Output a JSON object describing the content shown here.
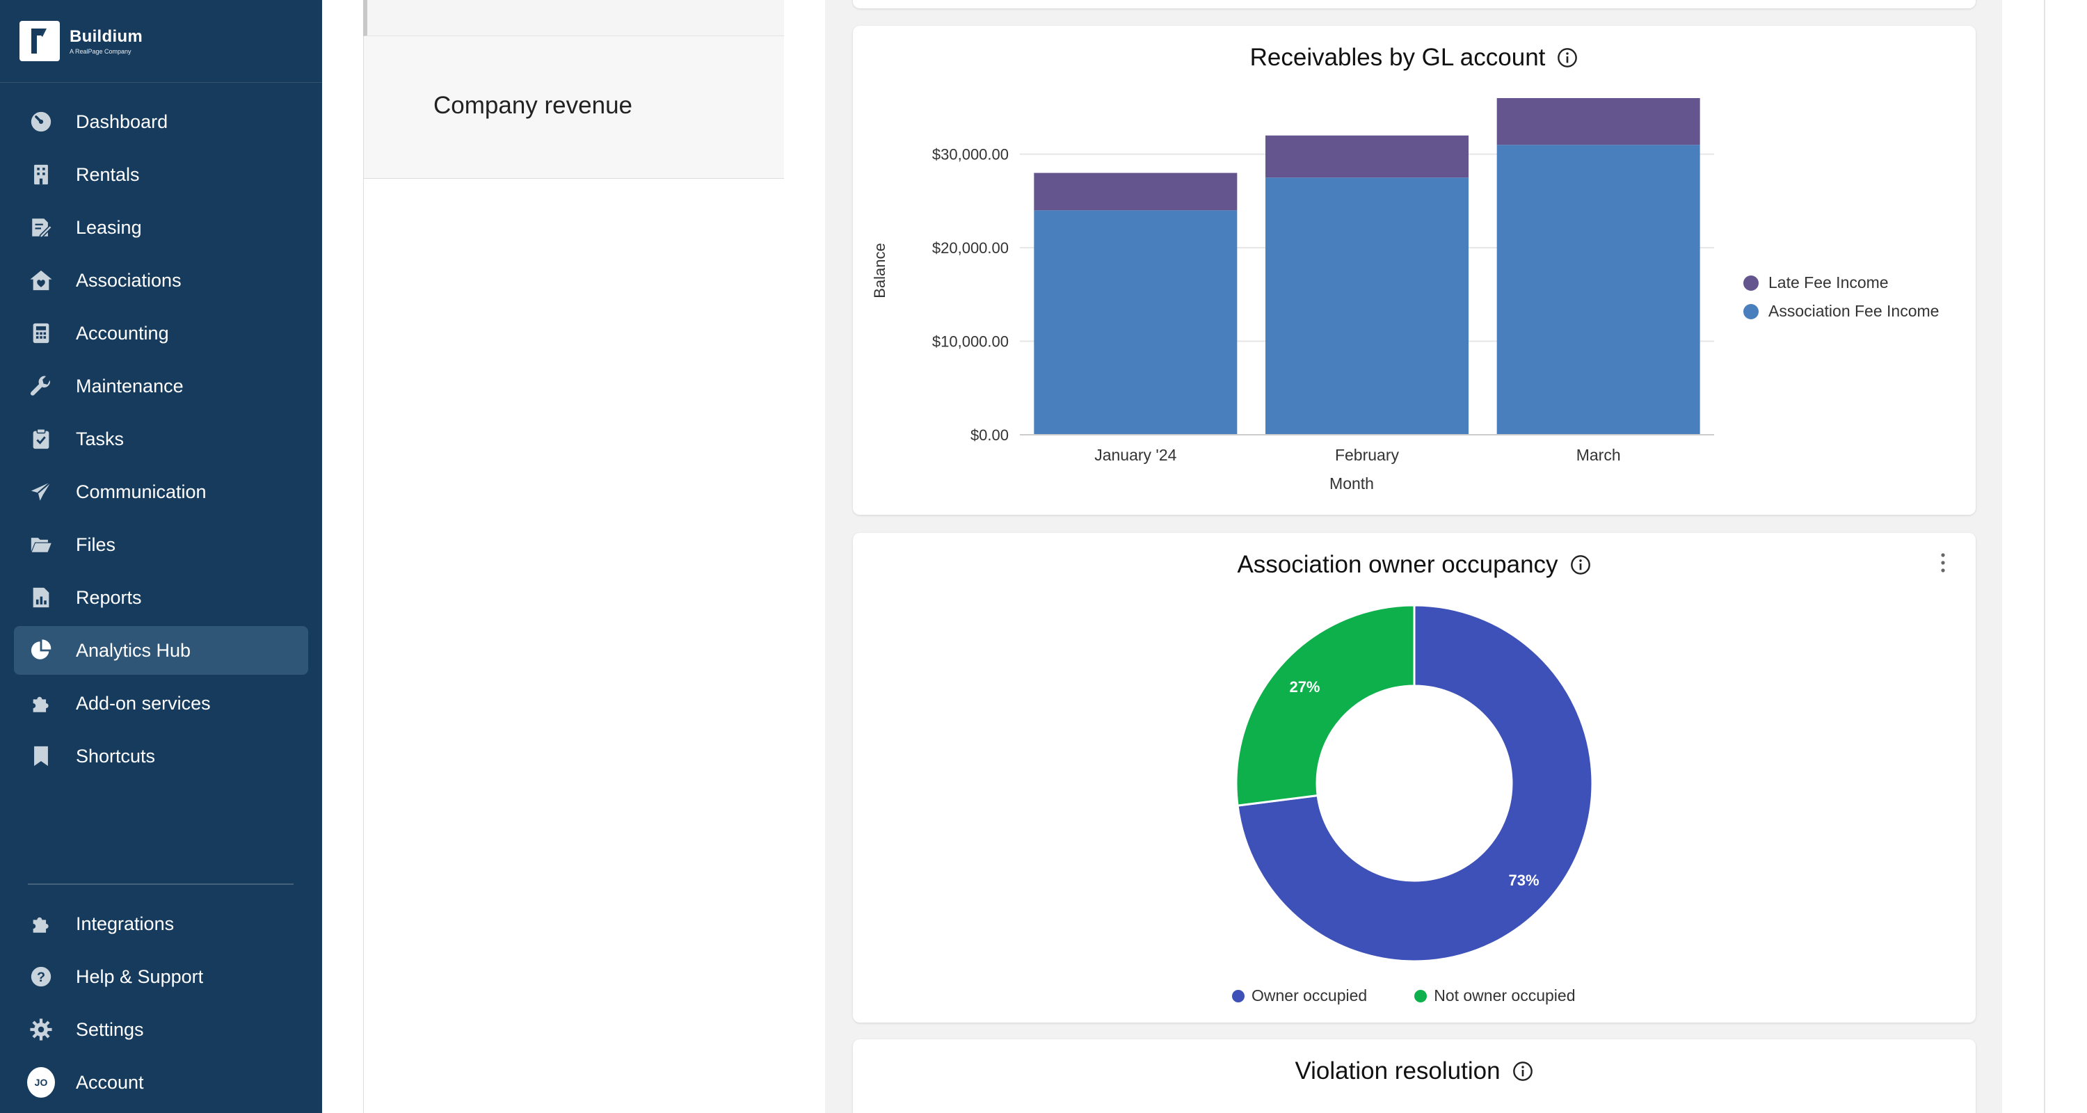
{
  "brand": {
    "name": "Buildium",
    "tagline": "A RealPage Company"
  },
  "nav": {
    "items": [
      {
        "label": "Dashboard",
        "icon": "dashboard-icon",
        "active": false
      },
      {
        "label": "Rentals",
        "icon": "building-icon",
        "active": false
      },
      {
        "label": "Leasing",
        "icon": "lease-document-icon",
        "active": false
      },
      {
        "label": "Associations",
        "icon": "association-house-icon",
        "active": false
      },
      {
        "label": "Accounting",
        "icon": "calculator-icon",
        "active": false
      },
      {
        "label": "Maintenance",
        "icon": "wrench-icon",
        "active": false
      },
      {
        "label": "Tasks",
        "icon": "clipboard-check-icon",
        "active": false
      },
      {
        "label": "Communication",
        "icon": "paper-plane-icon",
        "active": false
      },
      {
        "label": "Files",
        "icon": "folder-open-icon",
        "active": false
      },
      {
        "label": "Reports",
        "icon": "report-document-icon",
        "active": false
      },
      {
        "label": "Analytics Hub",
        "icon": "pie-chart-icon",
        "active": true
      },
      {
        "label": "Add-on services",
        "icon": "puzzle-icon",
        "active": false
      },
      {
        "label": "Shortcuts",
        "icon": "bookmark-icon",
        "active": false
      }
    ],
    "bottom_items": [
      {
        "label": "Integrations",
        "icon": "puzzle-icon"
      },
      {
        "label": "Help & Support",
        "icon": "help-circle-icon"
      },
      {
        "label": "Settings",
        "icon": "gear-icon"
      },
      {
        "label": "Account",
        "icon": "avatar",
        "initials": "JO"
      }
    ]
  },
  "middle_panel": {
    "selected_item": "Company revenue"
  },
  "cards": {
    "receivables": {
      "title": "Receivables by GL account"
    },
    "occupancy": {
      "title": "Association owner occupancy"
    },
    "violation": {
      "title": "Violation resolution"
    }
  },
  "chart_data": [
    {
      "type": "bar",
      "stacked": true,
      "title": "Receivables by GL account",
      "xlabel": "Month",
      "ylabel": "Balance",
      "categories": [
        "January '24",
        "February",
        "March"
      ],
      "ylim": [
        0,
        36000
      ],
      "yticks": [
        0,
        10000,
        20000,
        30000
      ],
      "ytick_labels": [
        "$0.00",
        "$10,000.00",
        "$20,000.00",
        "$30,000.00"
      ],
      "series": [
        {
          "name": "Association Fee Income",
          "color": "#4a7fbd",
          "values": [
            24000,
            27500,
            31000
          ]
        },
        {
          "name": "Late Fee Income",
          "color": "#64558f",
          "values": [
            4000,
            4500,
            5000
          ]
        }
      ],
      "legend_position": "right",
      "legend_order": [
        "Late Fee Income",
        "Association Fee Income"
      ],
      "grid": true
    },
    {
      "type": "pie",
      "donut": true,
      "title": "Association owner occupancy",
      "labels": [
        "Owner occupied",
        "Not owner occupied"
      ],
      "values": [
        73,
        27
      ],
      "display_labels": [
        "73%",
        "27%"
      ],
      "colors": [
        "#3d51b8",
        "#0db04b"
      ],
      "legend_position": "bottom"
    }
  ]
}
